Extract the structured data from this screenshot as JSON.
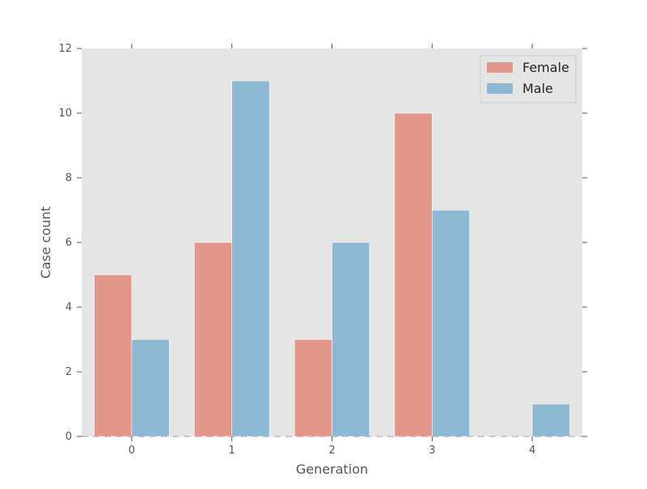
{
  "chart_data": {
    "type": "bar",
    "title": "",
    "xlabel": "Generation",
    "ylabel": "Case count",
    "categories": [
      "0",
      "1",
      "2",
      "3",
      "4"
    ],
    "series": [
      {
        "name": "Female",
        "values": [
          5,
          6,
          3,
          10,
          0
        ],
        "color": "#E2978A"
      },
      {
        "name": "Male",
        "values": [
          3,
          11,
          6,
          7,
          1
        ],
        "color": "#8DB8D3"
      }
    ],
    "ylim": [
      0,
      12
    ],
    "yticks": [
      0,
      2,
      4,
      6,
      8,
      10,
      12
    ],
    "grid": false,
    "legend_position": "top-right",
    "plot_background": "#E5E5E5",
    "baseline_style": "dashed"
  }
}
